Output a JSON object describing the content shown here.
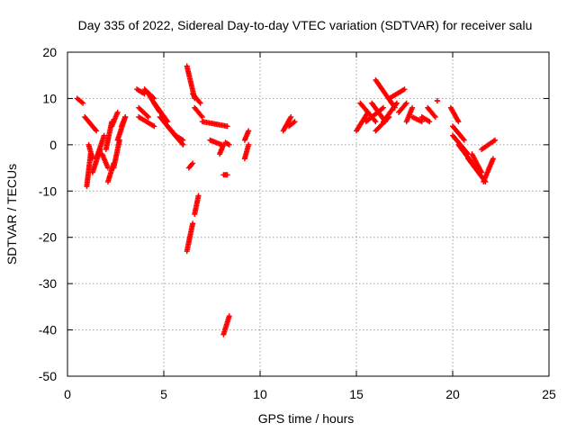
{
  "chart_data": {
    "type": "scatter",
    "title": "Day 335 of 2022, Sidereal Day-to-day VTEC variation (SDTVAR) for receiver salu",
    "xlabel": "GPS time / hours",
    "ylabel": "SDTVAR / TECUs",
    "xlim": [
      0,
      25
    ],
    "ylim": [
      -50,
      20
    ],
    "xticks": [
      0,
      5,
      10,
      15,
      20,
      25
    ],
    "yticks": [
      -50,
      -40,
      -30,
      -20,
      -10,
      0,
      10,
      20
    ],
    "grid": true,
    "marker": "+",
    "color": "#ff0000",
    "segments": [
      {
        "x": [
          0.5,
          0.8
        ],
        "y": [
          10,
          9
        ]
      },
      {
        "x": [
          0.9,
          1.5
        ],
        "y": [
          6,
          3
        ]
      },
      {
        "x": [
          1.0,
          1.2
        ],
        "y": [
          -9,
          -2
        ]
      },
      {
        "x": [
          1.1,
          1.3
        ],
        "y": [
          0,
          -3
        ]
      },
      {
        "x": [
          1.3,
          1.7
        ],
        "y": [
          -6,
          -1
        ]
      },
      {
        "x": [
          1.5,
          1.9
        ],
        "y": [
          -3,
          2
        ]
      },
      {
        "x": [
          1.8,
          2.1
        ],
        "y": [
          -2,
          -5
        ]
      },
      {
        "x": [
          2.0,
          2.3
        ],
        "y": [
          -1,
          5
        ]
      },
      {
        "x": [
          2.1,
          2.4
        ],
        "y": [
          -8,
          -4
        ]
      },
      {
        "x": [
          2.3,
          2.6
        ],
        "y": [
          4,
          7
        ]
      },
      {
        "x": [
          2.4,
          2.7
        ],
        "y": [
          -5,
          1
        ]
      },
      {
        "x": [
          2.6,
          3.0
        ],
        "y": [
          1,
          6
        ]
      },
      {
        "x": [
          2.8,
          3.0
        ],
        "y": [
          4,
          6
        ]
      },
      {
        "x": [
          3.6,
          4.0
        ],
        "y": [
          12,
          11
        ]
      },
      {
        "x": [
          3.7,
          4.2
        ],
        "y": [
          8,
          6
        ]
      },
      {
        "x": [
          3.7,
          4.5
        ],
        "y": [
          6,
          4
        ]
      },
      {
        "x": [
          4.0,
          4.5
        ],
        "y": [
          12,
          10
        ]
      },
      {
        "x": [
          4.2,
          4.8
        ],
        "y": [
          11,
          7
        ]
      },
      {
        "x": [
          4.5,
          5.2
        ],
        "y": [
          9,
          5
        ]
      },
      {
        "x": [
          4.8,
          5.8
        ],
        "y": [
          6,
          1
        ]
      },
      {
        "x": [
          5.2,
          6.0
        ],
        "y": [
          4,
          0
        ]
      },
      {
        "x": [
          5.6,
          6.0
        ],
        "y": [
          2,
          1
        ]
      },
      {
        "x": [
          6.2,
          6.6
        ],
        "y": [
          17,
          10
        ]
      },
      {
        "x": [
          6.5,
          6.9
        ],
        "y": [
          11,
          9
        ]
      },
      {
        "x": [
          6.6,
          7.0
        ],
        "y": [
          8,
          6
        ]
      },
      {
        "x": [
          6.3,
          6.5
        ],
        "y": [
          -5,
          -4
        ]
      },
      {
        "x": [
          6.2,
          6.5
        ],
        "y": [
          -23,
          -17
        ]
      },
      {
        "x": [
          6.6,
          6.8
        ],
        "y": [
          -15,
          -11
        ]
      },
      {
        "x": [
          7.0,
          8.3
        ],
        "y": [
          5,
          4
        ]
      },
      {
        "x": [
          7.4,
          8.0
        ],
        "y": [
          1,
          0
        ]
      },
      {
        "x": [
          8.2,
          8.4
        ],
        "y": [
          0.5,
          0
        ]
      },
      {
        "x": [
          7.9,
          8.1
        ],
        "y": [
          -2,
          0
        ]
      },
      {
        "x": [
          8.1,
          8.3
        ],
        "y": [
          -6.5,
          -6.5
        ]
      },
      {
        "x": [
          8.1,
          8.4
        ],
        "y": [
          -41,
          -37
        ]
      },
      {
        "x": [
          9.2,
          9.4
        ],
        "y": [
          1,
          3
        ]
      },
      {
        "x": [
          9.2,
          9.4
        ],
        "y": [
          -3,
          0
        ]
      },
      {
        "x": [
          11.2,
          11.6
        ],
        "y": [
          3,
          6
        ]
      },
      {
        "x": [
          11.5,
          11.8
        ],
        "y": [
          4,
          5
        ]
      },
      {
        "x": [
          15.0,
          15.6
        ],
        "y": [
          3,
          7
        ]
      },
      {
        "x": [
          15.2,
          16.0
        ],
        "y": [
          9,
          5
        ]
      },
      {
        "x": [
          15.5,
          16.4
        ],
        "y": [
          5,
          8
        ]
      },
      {
        "x": [
          15.8,
          16.5
        ],
        "y": [
          9,
          5
        ]
      },
      {
        "x": [
          16.0,
          17.0
        ],
        "y": [
          14,
          8
        ]
      },
      {
        "x": [
          16.4,
          17.1
        ],
        "y": [
          5,
          9
        ]
      },
      {
        "x": [
          16.7,
          17.5
        ],
        "y": [
          10,
          12
        ]
      },
      {
        "x": [
          16.0,
          16.7
        ],
        "y": [
          3,
          6
        ]
      },
      {
        "x": [
          17.2,
          17.6
        ],
        "y": [
          7,
          9
        ]
      },
      {
        "x": [
          17.6,
          17.9
        ],
        "y": [
          5,
          8
        ]
      },
      {
        "x": [
          17.9,
          18.4
        ],
        "y": [
          6,
          5
        ]
      },
      {
        "x": [
          18.4,
          18.8
        ],
        "y": [
          6,
          5
        ]
      },
      {
        "x": [
          18.7,
          19.1
        ],
        "y": [
          8,
          6
        ]
      },
      {
        "x": [
          19.2,
          19.2
        ],
        "y": [
          9.5,
          9.5
        ]
      },
      {
        "x": [
          19.9,
          20.3
        ],
        "y": [
          8,
          5
        ]
      },
      {
        "x": [
          20.0,
          20.6
        ],
        "y": [
          4,
          1
        ]
      },
      {
        "x": [
          20.0,
          20.8
        ],
        "y": [
          2,
          -2
        ]
      },
      {
        "x": [
          20.3,
          21.2
        ],
        "y": [
          0,
          -5
        ]
      },
      {
        "x": [
          20.8,
          21.7
        ],
        "y": [
          -3,
          -8
        ]
      },
      {
        "x": [
          21.0,
          21.5
        ],
        "y": [
          -2,
          -6
        ]
      },
      {
        "x": [
          21.5,
          22.2
        ],
        "y": [
          -1,
          1
        ]
      },
      {
        "x": [
          21.6,
          22.1
        ],
        "y": [
          -8,
          -3
        ]
      }
    ]
  }
}
